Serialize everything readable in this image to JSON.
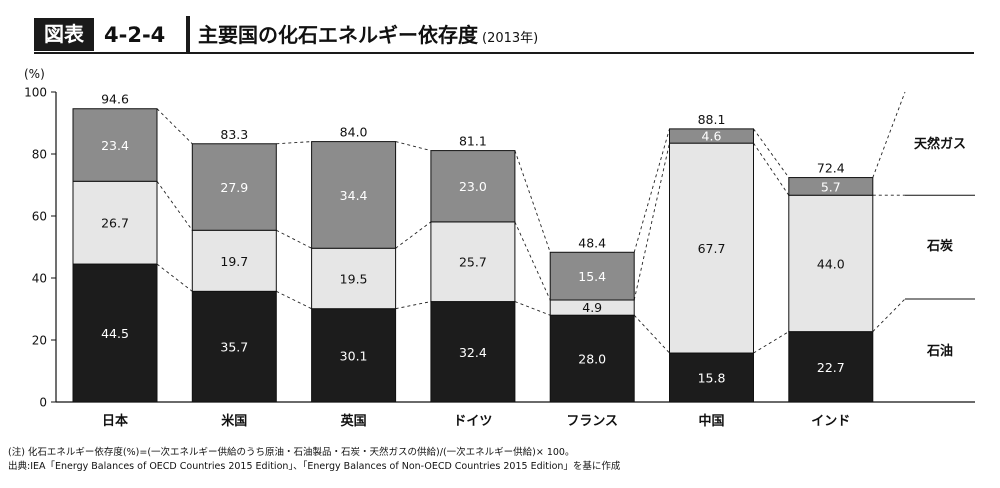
{
  "header": {
    "badge": "図表",
    "figure_number": "4-2-4",
    "title": "主要国の化石エネルギー依存度",
    "year": "(2013年)"
  },
  "chart_data": {
    "type": "bar",
    "stacked": true,
    "categories": [
      "日本",
      "米国",
      "英国",
      "ドイツ",
      "フランス",
      "中国",
      "インド"
    ],
    "series": [
      {
        "name": "石油",
        "values": [
          44.5,
          35.7,
          30.1,
          32.4,
          28.0,
          15.8,
          22.7
        ],
        "color": "#1c1c1c",
        "label_color": "#ffffff"
      },
      {
        "name": "石炭",
        "values": [
          26.7,
          19.7,
          19.5,
          25.7,
          4.9,
          67.7,
          44.0
        ],
        "color": "#e6e6e6",
        "label_color": "#111111"
      },
      {
        "name": "天然ガス",
        "values": [
          23.4,
          27.9,
          34.4,
          23.0,
          15.4,
          4.6,
          5.7
        ],
        "color": "#8c8c8c",
        "label_color": "#ffffff"
      }
    ],
    "totals": [
      "94.6",
      "83.3",
      "84.0",
      "81.1",
      "48.4",
      "88.1",
      "72.4"
    ],
    "ylabel": "(%)",
    "ylim": [
      0,
      100
    ],
    "yticks": [
      0,
      20,
      40,
      60,
      80,
      100
    ],
    "grid": false,
    "legend_placement": "right"
  },
  "notes": {
    "definition": "(注) 化石エネルギー依存度(%)=(一次エネルギー供給のうち原油・石油製品・石炭・天然ガスの供給)/(一次エネルギー供給)× 100。",
    "source": "出典:IEA「Energy Balances of OECD Countries 2015 Edition」、「Energy Balances of Non-OECD Countries 2015 Edition」を基に作成"
  }
}
